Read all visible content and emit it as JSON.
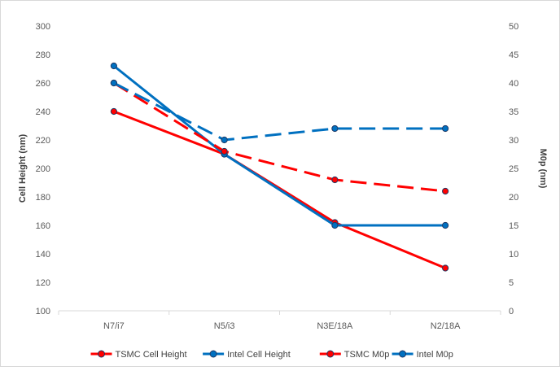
{
  "chart_data": {
    "type": "line",
    "categories": [
      "N7/i7",
      "N5/i3",
      "N3E/18A",
      "N2/18A"
    ],
    "series": [
      {
        "name": "TSMC Cell Height",
        "axis": "left",
        "color": "#ff0000",
        "dash": "solid",
        "values": [
          240,
          210,
          162,
          130
        ]
      },
      {
        "name": "Intel Cell Height",
        "axis": "left",
        "color": "#0070c0",
        "dash": "solid",
        "values": [
          272,
          210,
          160,
          160
        ]
      },
      {
        "name": "TSMC M0p",
        "axis": "right",
        "color": "#ff0000",
        "dash": "dashed",
        "values": [
          40,
          28,
          23,
          21
        ]
      },
      {
        "name": "Intel M0p",
        "axis": "right",
        "color": "#0070c0",
        "dash": "dashed",
        "values": [
          40,
          30,
          32,
          32
        ]
      }
    ],
    "y_left": {
      "label": "Cell Height (nm)",
      "range": [
        100,
        300
      ],
      "ticks": [
        "100",
        "120",
        "140",
        "160",
        "180",
        "200",
        "220",
        "240",
        "260",
        "280",
        "300"
      ]
    },
    "y_right": {
      "label": "M0p (nm)",
      "range": [
        0,
        50
      ],
      "ticks": [
        "0",
        "5",
        "10",
        "15",
        "20",
        "25",
        "30",
        "35",
        "40",
        "45",
        "50"
      ]
    },
    "grid": false,
    "legend_position": "bottom"
  }
}
